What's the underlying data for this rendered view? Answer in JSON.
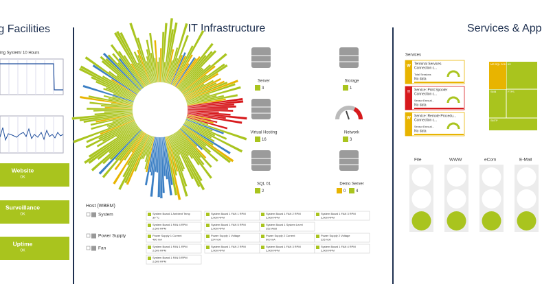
{
  "left_panel": {
    "title": "g Facilities",
    "chart_subtitle": "ing System/ 10 Hours",
    "tiles": [
      {
        "label": "Website",
        "status": "OK"
      },
      {
        "label": "Surveillance",
        "status": "OK"
      },
      {
        "label": "Uptime",
        "status": "OK"
      }
    ]
  },
  "middle_panel": {
    "title": "IT Infrastructure",
    "devices": [
      {
        "label": "Server",
        "badges": [
          {
            "text": "3",
            "color": "#a9c41e"
          }
        ]
      },
      {
        "label": "Storage",
        "badges": [
          {
            "text": "1",
            "color": "#a9c41e"
          }
        ]
      },
      {
        "label": "Virtual Hosting",
        "badges": [
          {
            "text": "16",
            "color": "#a9c41e"
          }
        ]
      },
      {
        "label": "Network",
        "badges": [
          {
            "text": "3",
            "color": "#a9c41e"
          }
        ]
      },
      {
        "label": "SQL 01",
        "badges": [
          {
            "text": "2",
            "color": "#a9c41e"
          }
        ]
      },
      {
        "label": "Demo Server",
        "badges": [
          {
            "text": "0",
            "color": "#e8b400"
          },
          {
            "text": "4",
            "color": "#a9c41e"
          }
        ]
      }
    ],
    "host": {
      "title": "Host (WBEM)",
      "groups": [
        {
          "name": "System",
          "sensors": [
            {
              "name": "System Board 1 Ambient Temp",
              "value": "30 °C"
            },
            {
              "name": "System Board 1 FAN 1 RPM",
              "value": "2,600 RPM"
            },
            {
              "name": "System Board 1 FAN 2 RPM",
              "value": "2,600 RPM"
            },
            {
              "name": "System Board 1 FAN 3 RPM",
              "value": "2,600 RPM"
            },
            {
              "name": "System Board 1 FAN 4 RPM",
              "value": "2,600 RPM"
            },
            {
              "name": "System Board 1 FAN 5 RPM",
              "value": "2,600 RPM"
            },
            {
              "name": "System Board 1 System Level",
              "value": "252 Watt"
            }
          ]
        },
        {
          "name": "Power Supply",
          "sensors": [
            {
              "name": "Power Supply 1 Current",
              "value": "480 mA"
            },
            {
              "name": "Power Supply 1 Voltage",
              "value": "224 Volt"
            },
            {
              "name": "Power Supply 2 Current",
              "value": "600 mA"
            },
            {
              "name": "Power Supply 2 Voltage",
              "value": "226 Volt"
            }
          ]
        },
        {
          "name": "Fan",
          "sensors": [
            {
              "name": "System Board 1 FAN 1 RPM",
              "value": "2,600 RPM"
            },
            {
              "name": "System Board 1 FAN 2 RPM",
              "value": "2,600 RPM"
            },
            {
              "name": "System Board 1 FAN 3 RPM",
              "value": "2,600 RPM"
            },
            {
              "name": "System Board 1 FAN 4 RPM",
              "value": "2,600 RPM"
            },
            {
              "name": "System Board 1 FAN 5 RPM",
              "value": "2,600 RPM"
            }
          ]
        }
      ]
    }
  },
  "right_panel": {
    "title": "Services & App",
    "services_label": "Services",
    "services": [
      {
        "name": "Terminal Services",
        "status": "Connection c...",
        "metric": "Total Sessions",
        "metric_value": "No data",
        "color": "#e8b400",
        "badge": "W"
      },
      {
        "name": "Service: Print Spooler",
        "status": "Connection c...",
        "metric": "Sensor Executi...",
        "metric_value": "No data",
        "color": "#d7191c",
        "badge": "!!"
      },
      {
        "name": "Service: Remote Procedu...",
        "status": "Connection c...",
        "metric": "Sensor Executi...",
        "metric_value": "No data",
        "color": "#e8b400",
        "badge": "W"
      }
    ],
    "treemap": [
      "MS SQL 2019",
      "IIS",
      "SMB",
      "FTPS",
      "SMTP"
    ],
    "traffic_lights": [
      "File",
      "WWW",
      "eCom",
      "E-Mail"
    ]
  }
}
